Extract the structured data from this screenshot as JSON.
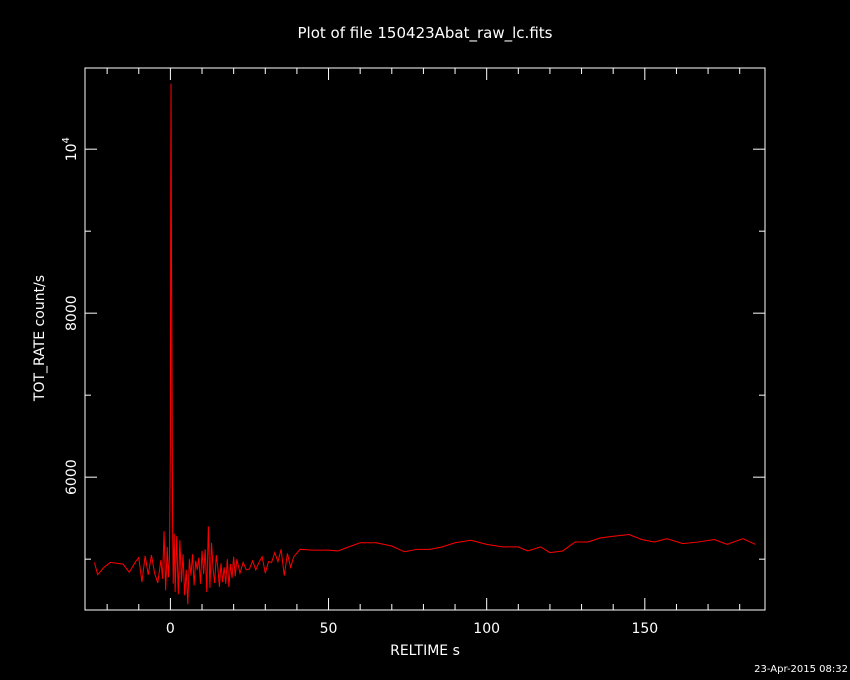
{
  "chart_data": {
    "type": "line",
    "title": "Plot of file 150423Abat_raw_lc.fits",
    "xlabel": "RELTIME  s",
    "ylabel": "TOT_RATE  count/s",
    "timestamp": "23-Apr-2015 08:32",
    "xlim": [
      -27,
      188
    ],
    "ylim": [
      4380,
      10990
    ],
    "x_ticks_major": [
      0,
      50,
      100,
      150
    ],
    "x_tick_labels": [
      "0",
      "50",
      "100",
      "150"
    ],
    "y_ticks_major": [
      6000,
      8000,
      10000
    ],
    "y_tick_labels": [
      {
        "base": "6000",
        "sup": ""
      },
      {
        "base": "8000",
        "sup": ""
      },
      {
        "base": "10",
        "sup": "4"
      }
    ],
    "x_ticks_minor": [
      -20,
      -10,
      10,
      20,
      30,
      40,
      60,
      70,
      80,
      90,
      110,
      120,
      130,
      140,
      160,
      170,
      180
    ],
    "y_ticks_minor": [
      5000,
      7000,
      9000
    ],
    "colors": {
      "background": "#000000",
      "axes": "#ffffff",
      "series": "#ff0000",
      "text": "#ffffff"
    },
    "series": [
      {
        "name": "",
        "points": [
          [
            -24,
            4960
          ],
          [
            -23,
            4810
          ],
          [
            -21,
            4900
          ],
          [
            -19,
            4960
          ],
          [
            -17,
            4950
          ],
          [
            -15,
            4940
          ],
          [
            -13,
            4840
          ],
          [
            -11,
            4970
          ],
          [
            -10,
            5020
          ],
          [
            -9,
            4720
          ],
          [
            -8,
            5040
          ],
          [
            -7,
            4810
          ],
          [
            -6,
            5050
          ],
          [
            -5,
            4830
          ],
          [
            -4,
            4710
          ],
          [
            -3,
            4990
          ],
          [
            -2.5,
            4760
          ],
          [
            -2,
            5340
          ],
          [
            -1.5,
            4620
          ],
          [
            -1,
            5150
          ],
          [
            -0.6,
            4780
          ],
          [
            -0.3,
            5010
          ],
          [
            0,
            6400
          ],
          [
            0.1,
            9600
          ],
          [
            0.2,
            10800
          ],
          [
            0.3,
            9200
          ],
          [
            0.5,
            7300
          ],
          [
            0.7,
            5400
          ],
          [
            0.9,
            4700
          ],
          [
            1.2,
            5310
          ],
          [
            1.5,
            4600
          ],
          [
            2,
            5280
          ],
          [
            2.5,
            4570
          ],
          [
            3,
            5230
          ],
          [
            3.5,
            4720
          ],
          [
            4,
            5060
          ],
          [
            4.5,
            4560
          ],
          [
            5,
            4870
          ],
          [
            5.5,
            4450
          ],
          [
            6,
            5000
          ],
          [
            6.5,
            4800
          ],
          [
            7,
            5060
          ],
          [
            7.5,
            4680
          ],
          [
            8,
            4980
          ],
          [
            8.5,
            4870
          ],
          [
            9,
            5020
          ],
          [
            9.5,
            4700
          ],
          [
            10,
            5100
          ],
          [
            10.5,
            4820
          ],
          [
            11,
            5120
          ],
          [
            11.5,
            4600
          ],
          [
            12,
            5400
          ],
          [
            12.5,
            4650
          ],
          [
            13,
            5200
          ],
          [
            13.5,
            4880
          ],
          [
            14,
            4710
          ],
          [
            14.5,
            5050
          ],
          [
            15,
            4890
          ],
          [
            15.5,
            4660
          ],
          [
            16,
            4950
          ],
          [
            16.5,
            4720
          ],
          [
            17,
            4900
          ],
          [
            17.5,
            4700
          ],
          [
            18,
            5000
          ],
          [
            18.5,
            4660
          ],
          [
            19,
            4940
          ],
          [
            19.5,
            4770
          ],
          [
            20,
            5030
          ],
          [
            20.5,
            4790
          ],
          [
            21,
            5000
          ],
          [
            22,
            4830
          ],
          [
            23,
            4960
          ],
          [
            24,
            4870
          ],
          [
            25,
            4880
          ],
          [
            26,
            4980
          ],
          [
            27,
            4870
          ],
          [
            28,
            4960
          ],
          [
            29,
            5030
          ],
          [
            30,
            4830
          ],
          [
            31,
            4970
          ],
          [
            32,
            4960
          ],
          [
            33,
            5080
          ],
          [
            34,
            4970
          ],
          [
            35,
            5120
          ],
          [
            36,
            4800
          ],
          [
            37,
            5070
          ],
          [
            38,
            4900
          ],
          [
            39,
            5030
          ],
          [
            41,
            5120
          ],
          [
            45,
            5110
          ],
          [
            50,
            5110
          ],
          [
            53,
            5100
          ],
          [
            55,
            5130
          ],
          [
            60,
            5200
          ],
          [
            65,
            5200
          ],
          [
            70,
            5160
          ],
          [
            74,
            5090
          ],
          [
            78,
            5120
          ],
          [
            82,
            5120
          ],
          [
            86,
            5150
          ],
          [
            90,
            5200
          ],
          [
            95,
            5230
          ],
          [
            100,
            5180
          ],
          [
            105,
            5150
          ],
          [
            110,
            5150
          ],
          [
            113,
            5100
          ],
          [
            117,
            5150
          ],
          [
            120,
            5080
          ],
          [
            124,
            5100
          ],
          [
            128,
            5210
          ],
          [
            132,
            5210
          ],
          [
            136,
            5260
          ],
          [
            140,
            5280
          ],
          [
            145,
            5300
          ],
          [
            149,
            5240
          ],
          [
            153,
            5210
          ],
          [
            157,
            5250
          ],
          [
            162,
            5190
          ],
          [
            167,
            5210
          ],
          [
            172,
            5240
          ],
          [
            176,
            5180
          ],
          [
            181,
            5250
          ],
          [
            185,
            5180
          ]
        ]
      }
    ]
  }
}
